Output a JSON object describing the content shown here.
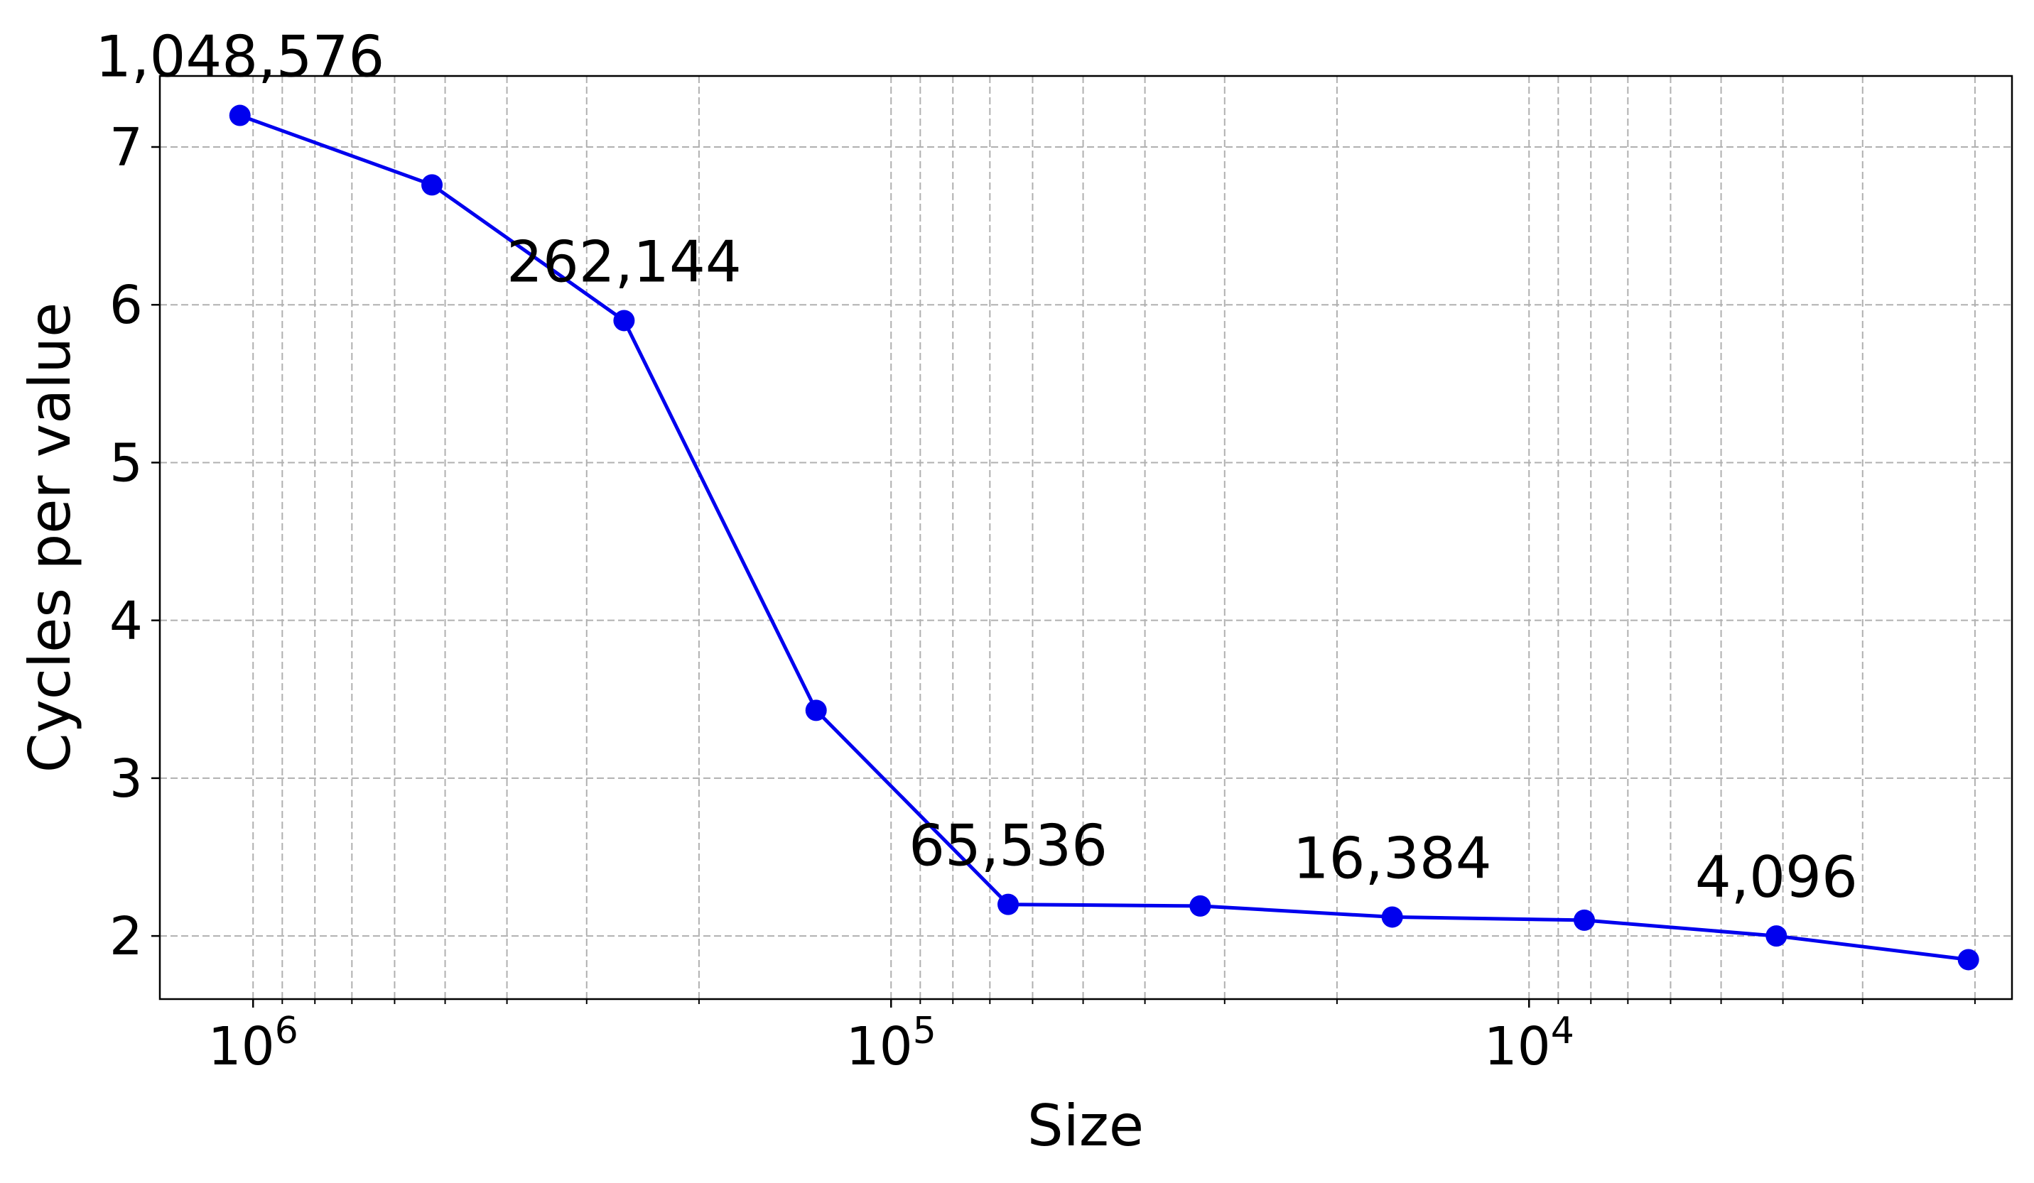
{
  "chart_data": {
    "type": "line",
    "xlabel": "Size",
    "ylabel": "Cycles per value",
    "xscale": "log",
    "x_inverted": true,
    "xlim": [
      1400000,
      1750
    ],
    "ylim": [
      1.6,
      7.45
    ],
    "grid": true,
    "yticks": [
      2,
      3,
      4,
      5,
      6,
      7
    ],
    "xtick_labels": [
      {
        "value": 1000000,
        "base": "10",
        "exp": "6"
      },
      {
        "value": 100000,
        "base": "10",
        "exp": "5"
      },
      {
        "value": 10000,
        "base": "10",
        "exp": "4"
      }
    ],
    "series": [
      {
        "color": "#0000ee",
        "marker": "circle",
        "x": [
          1048576,
          524288,
          262144,
          131072,
          65536,
          32768,
          16384,
          8192,
          4096,
          2048
        ],
        "y": [
          7.2,
          6.76,
          5.9,
          3.43,
          2.2,
          2.19,
          2.12,
          2.1,
          2.0,
          1.85
        ]
      }
    ],
    "annotations": [
      {
        "text": "1,048,576",
        "x": 1048576,
        "y": 7.2
      },
      {
        "text": "262,144",
        "x": 262144,
        "y": 5.9
      },
      {
        "text": "65,536",
        "x": 65536,
        "y": 2.2
      },
      {
        "text": "16,384",
        "x": 16384,
        "y": 2.12
      },
      {
        "text": "4,096",
        "x": 4096,
        "y": 2.0
      }
    ]
  }
}
